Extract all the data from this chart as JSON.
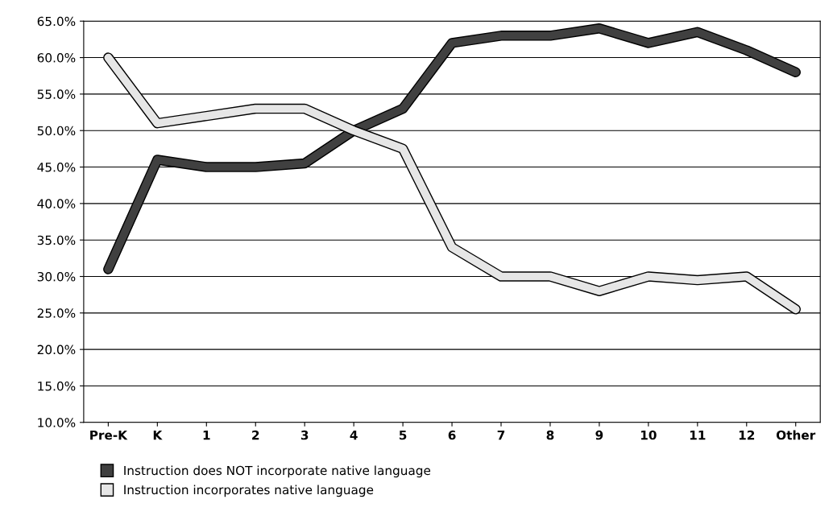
{
  "chart_data": {
    "type": "line",
    "categories": [
      "Pre-K",
      "K",
      "1",
      "2",
      "3",
      "4",
      "5",
      "6",
      "7",
      "8",
      "9",
      "10",
      "11",
      "12",
      "Other"
    ],
    "series": [
      {
        "name": "Instruction does NOT incorporate native language",
        "color": "#404040",
        "values": [
          31,
          46,
          45,
          45,
          45.5,
          50,
          53,
          62,
          63,
          63,
          64,
          62,
          63.5,
          61,
          58
        ]
      },
      {
        "name": "Instruction incorporates native language",
        "color": "#e6e6e6",
        "values": [
          60,
          51,
          52,
          53,
          53,
          50,
          47.5,
          34,
          30,
          30,
          28,
          30,
          29.5,
          30,
          25.5
        ]
      }
    ],
    "ylim": [
      10,
      65
    ],
    "yticks": [
      {
        "value": 10,
        "label": "10.0%"
      },
      {
        "value": 15,
        "label": "15.0%"
      },
      {
        "value": 20,
        "label": "20.0%"
      },
      {
        "value": 25,
        "label": "25.0%"
      },
      {
        "value": 30,
        "label": "30.0%"
      },
      {
        "value": 35,
        "label": "35.0%"
      },
      {
        "value": 40,
        "label": "40.0%"
      },
      {
        "value": 45,
        "label": "45.0%"
      },
      {
        "value": 50,
        "label": "50.0%"
      },
      {
        "value": 55,
        "label": "55.0%"
      },
      {
        "value": 60,
        "label": "60.0%"
      },
      {
        "value": 65,
        "label": "65.0%"
      }
    ],
    "grid": "y",
    "legend": "bottom left",
    "marker": "none",
    "line_style": "solid"
  }
}
